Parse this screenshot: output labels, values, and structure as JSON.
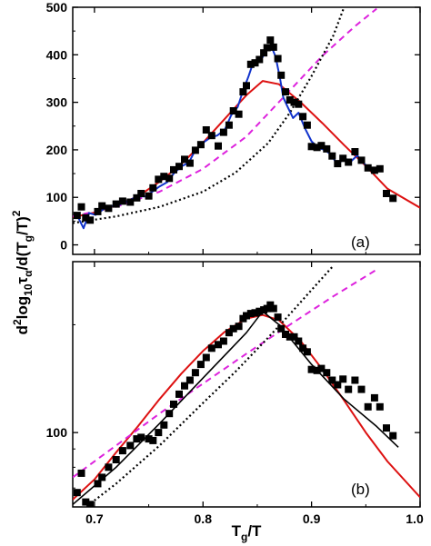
{
  "colors": {
    "data": "#000000",
    "solid_fit": "#dd1111",
    "dashed_fit": "#dd22dd",
    "dotted_fit": "#000000",
    "smoothed": "#1133cc",
    "line_b": "#000000"
  },
  "axes": {
    "ylabel": "d²log₁₀τα/d(Tg/T)²",
    "xlabel": "Tg/T",
    "ylabel_main": "d",
    "ylabel_sup1": "2",
    "ylabel_mid": "log",
    "ylabel_sub1": "10",
    "ylabel_tau": "τ",
    "ylabel_sub2": "α",
    "ylabel_div": "/d(T",
    "ylabel_sub3": "g",
    "ylabel_paren": "/T)",
    "ylabel_sup2": "2",
    "xlabel_T": "T",
    "xlabel_sub": "g",
    "xlabel_rest": "/T"
  },
  "panels": {
    "a": {
      "label": "(a)"
    },
    "b": {
      "label": "(b)"
    }
  },
  "chart_data": [
    {
      "type": "scatter",
      "panel": "a",
      "xlim": [
        0.68,
        1.0
      ],
      "ylim": [
        -20,
        500
      ],
      "yticks": [
        0,
        100,
        200,
        300,
        400,
        500
      ],
      "scale": "linear",
      "points": [
        [
          0.684,
          62
        ],
        [
          0.688,
          80
        ],
        [
          0.692,
          57
        ],
        [
          0.696,
          52
        ],
        [
          0.703,
          70
        ],
        [
          0.707,
          82
        ],
        [
          0.713,
          77
        ],
        [
          0.72,
          86
        ],
        [
          0.726,
          92
        ],
        [
          0.733,
          90
        ],
        [
          0.739,
          99
        ],
        [
          0.743,
          108
        ],
        [
          0.75,
          103
        ],
        [
          0.754,
          120
        ],
        [
          0.759,
          138
        ],
        [
          0.764,
          144
        ],
        [
          0.769,
          140
        ],
        [
          0.773,
          158
        ],
        [
          0.778,
          165
        ],
        [
          0.783,
          180
        ],
        [
          0.788,
          172
        ],
        [
          0.793,
          199
        ],
        [
          0.798,
          211
        ],
        [
          0.803,
          242
        ],
        [
          0.808,
          230
        ],
        [
          0.814,
          208
        ],
        [
          0.819,
          237
        ],
        [
          0.824,
          252
        ],
        [
          0.828,
          282
        ],
        [
          0.833,
          275
        ],
        [
          0.837,
          322
        ],
        [
          0.84,
          335
        ],
        [
          0.844,
          380
        ],
        [
          0.848,
          383
        ],
        [
          0.852,
          390
        ],
        [
          0.856,
          404
        ],
        [
          0.859,
          415
        ],
        [
          0.862,
          431
        ],
        [
          0.865,
          416
        ],
        [
          0.869,
          392
        ],
        [
          0.872,
          357
        ],
        [
          0.876,
          322
        ],
        [
          0.88,
          305
        ],
        [
          0.884,
          300
        ],
        [
          0.888,
          296
        ],
        [
          0.892,
          270
        ],
        [
          0.896,
          252
        ],
        [
          0.9,
          207
        ],
        [
          0.905,
          205
        ],
        [
          0.909,
          209
        ],
        [
          0.914,
          202
        ],
        [
          0.919,
          187
        ],
        [
          0.924,
          171
        ],
        [
          0.929,
          182
        ],
        [
          0.934,
          174
        ],
        [
          0.94,
          196
        ],
        [
          0.946,
          178
        ],
        [
          0.952,
          162
        ],
        [
          0.958,
          157
        ],
        [
          0.963,
          160
        ],
        [
          0.969,
          108
        ],
        [
          0.975,
          98
        ]
      ],
      "series": [
        {
          "style": "solid-red",
          "x": [
            0.68,
            0.7,
            0.72,
            0.74,
            0.76,
            0.78,
            0.8,
            0.82,
            0.84,
            0.855,
            0.87,
            0.89,
            0.91,
            0.93,
            0.95,
            0.97,
            1.0
          ],
          "y": [
            58,
            68,
            83,
            102,
            133,
            170,
            215,
            265,
            315,
            345,
            338,
            300,
            256,
            210,
            166,
            118,
            78
          ]
        },
        {
          "style": "dashed-magenta",
          "x": [
            0.68,
            0.72,
            0.76,
            0.8,
            0.84,
            0.88,
            0.91,
            0.94,
            0.96
          ],
          "y": [
            60,
            80,
            112,
            160,
            228,
            325,
            398,
            460,
            497
          ]
        },
        {
          "style": "dotted-black",
          "x": [
            0.68,
            0.72,
            0.76,
            0.8,
            0.83,
            0.86,
            0.88,
            0.9,
            0.92,
            0.93
          ],
          "y": [
            46,
            60,
            80,
            112,
            152,
            214,
            278,
            355,
            440,
            500
          ]
        },
        {
          "style": "solid-blue",
          "x": [
            0.684,
            0.69,
            0.695,
            0.701,
            0.707,
            0.713,
            0.72,
            0.726,
            0.733,
            0.74,
            0.747,
            0.754,
            0.76,
            0.767,
            0.773,
            0.78,
            0.787,
            0.793,
            0.8,
            0.807,
            0.813,
            0.82,
            0.826,
            0.832,
            0.837,
            0.842,
            0.846,
            0.85,
            0.855,
            0.859,
            0.863,
            0.867,
            0.871,
            0.874,
            0.878,
            0.883,
            0.888,
            0.894,
            0.9,
            0.906,
            0.912,
            0.918,
            0.924,
            0.93,
            0.936,
            0.942,
            0.949,
            0.956,
            0.962
          ],
          "y": [
            62,
            35,
            67,
            63,
            73,
            82,
            82,
            87,
            95,
            102,
            102,
            113,
            123,
            132,
            150,
            165,
            173,
            200,
            215,
            226,
            230,
            242,
            273,
            290,
            325,
            355,
            382,
            390,
            395,
            417,
            418,
            395,
            350,
            310,
            290,
            267,
            278,
            245,
            218,
            204,
            200,
            190,
            168,
            183,
            175,
            188,
            170,
            157,
            160
          ]
        }
      ]
    },
    {
      "type": "scatter",
      "panel": "b",
      "xlim": [
        0.68,
        1.0
      ],
      "ylim": [
        62,
        300
      ],
      "scale": "log",
      "yticks": [
        100
      ],
      "xticks": [
        0.7,
        0.8,
        0.9,
        1.0
      ],
      "xticklabels": [
        "0.7",
        "0.8",
        "0.9",
        "1.0"
      ],
      "points": [
        [
          0.684,
          68
        ],
        [
          0.688,
          77
        ],
        [
          0.692,
          64
        ],
        [
          0.696,
          63
        ],
        [
          0.703,
          72
        ],
        [
          0.707,
          75
        ],
        [
          0.713,
          80
        ],
        [
          0.72,
          84
        ],
        [
          0.726,
          89
        ],
        [
          0.733,
          92
        ],
        [
          0.739,
          96
        ],
        [
          0.743,
          97
        ],
        [
          0.75,
          96
        ],
        [
          0.754,
          95
        ],
        [
          0.759,
          100
        ],
        [
          0.764,
          105
        ],
        [
          0.769,
          113
        ],
        [
          0.773,
          120
        ],
        [
          0.778,
          128
        ],
        [
          0.783,
          135
        ],
        [
          0.788,
          140
        ],
        [
          0.793,
          147
        ],
        [
          0.798,
          155
        ],
        [
          0.803,
          162
        ],
        [
          0.808,
          172
        ],
        [
          0.814,
          176
        ],
        [
          0.819,
          180
        ],
        [
          0.824,
          190
        ],
        [
          0.828,
          195
        ],
        [
          0.833,
          198
        ],
        [
          0.837,
          208
        ],
        [
          0.84,
          212
        ],
        [
          0.844,
          215
        ],
        [
          0.848,
          216
        ],
        [
          0.852,
          218
        ],
        [
          0.856,
          220
        ],
        [
          0.859,
          222
        ],
        [
          0.862,
          227
        ],
        [
          0.865,
          222
        ],
        [
          0.869,
          210
        ],
        [
          0.872,
          195
        ],
        [
          0.876,
          188
        ],
        [
          0.88,
          185
        ],
        [
          0.884,
          185
        ],
        [
          0.888,
          180
        ],
        [
          0.892,
          172
        ],
        [
          0.896,
          168
        ],
        [
          0.9,
          150
        ],
        [
          0.905,
          149
        ],
        [
          0.909,
          151
        ],
        [
          0.914,
          147
        ],
        [
          0.919,
          140
        ],
        [
          0.924,
          136
        ],
        [
          0.929,
          141
        ],
        [
          0.934,
          132
        ],
        [
          0.94,
          140
        ],
        [
          0.946,
          132
        ],
        [
          0.952,
          118
        ],
        [
          0.958,
          125
        ],
        [
          0.963,
          118
        ],
        [
          0.969,
          103
        ],
        [
          0.975,
          98
        ]
      ],
      "series": [
        {
          "style": "solid-red",
          "x": [
            0.68,
            0.7,
            0.72,
            0.74,
            0.76,
            0.78,
            0.8,
            0.82,
            0.84,
            0.855,
            0.87,
            0.89,
            0.91,
            0.93,
            0.95,
            0.97,
            1.0
          ],
          "y": [
            65,
            74,
            88,
            104,
            124,
            146,
            169,
            191,
            208,
            213,
            206,
            180,
            150,
            123,
            100,
            83,
            66
          ]
        },
        {
          "style": "dashed-magenta",
          "x": [
            0.68,
            0.72,
            0.76,
            0.8,
            0.84,
            0.88,
            0.92,
            0.96
          ],
          "y": [
            75,
            92,
            113,
            137,
            166,
            200,
            240,
            285
          ]
        },
        {
          "style": "dotted-black",
          "x": [
            0.68,
            0.72,
            0.76,
            0.8,
            0.83,
            0.86,
            0.88,
            0.9,
            0.92
          ],
          "y": [
            58,
            72,
            92,
            121,
            148,
            184,
            214,
            250,
            292
          ]
        },
        {
          "style": "solid-black",
          "x": [
            0.68,
            0.72,
            0.76,
            0.8,
            0.84,
            0.855,
            0.87,
            0.9,
            0.93,
            0.96,
            0.98
          ],
          "y": [
            63,
            80,
            106,
            142,
            190,
            218,
            200,
            155,
            124,
            104,
            91
          ]
        }
      ]
    }
  ]
}
